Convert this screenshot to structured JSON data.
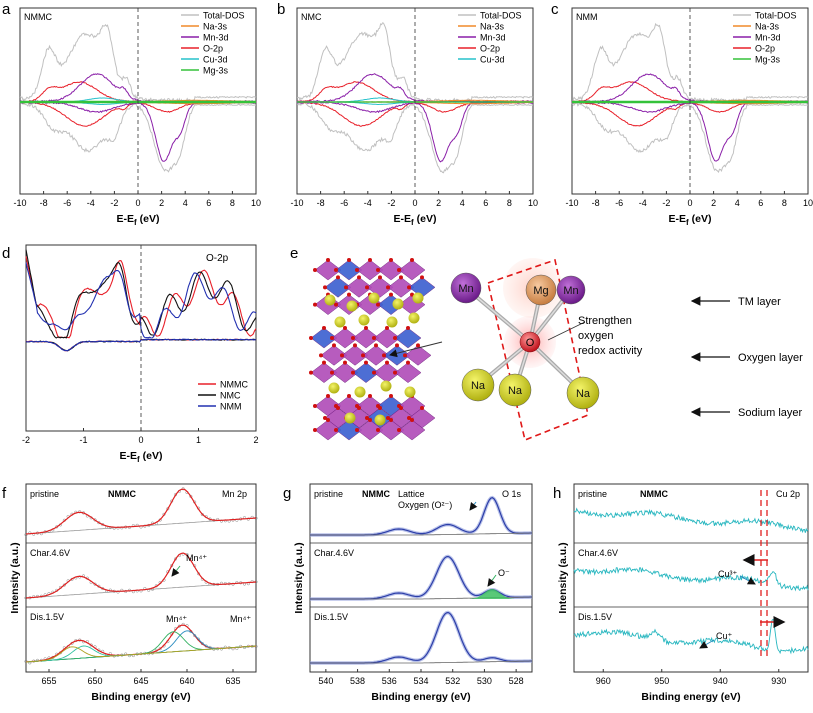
{
  "figure": {
    "panels": {
      "a": {
        "letter": "a",
        "name": "NMMC",
        "legend": [
          "Total-DOS",
          "Na-3s",
          "Mn-3d",
          "O-2p",
          "Cu-3d",
          "Mg-3s"
        ]
      },
      "b": {
        "letter": "b",
        "name": "NMC",
        "legend": [
          "Total-DOS",
          "Na-3s",
          "Mn-3d",
          "O-2p",
          "Cu-3d"
        ]
      },
      "c": {
        "letter": "c",
        "name": "NMM",
        "legend": [
          "Total-DOS",
          "Na-3s",
          "Mn-3d",
          "O-2p",
          "Mg-3s"
        ]
      },
      "d": {
        "letter": "d",
        "label": "O-2p",
        "legend": [
          "NMMC",
          "NMC",
          "NMM"
        ]
      },
      "e": {
        "letter": "e"
      },
      "f": {
        "letter": "f",
        "sample": "NMMC",
        "edge": "Mn 2p",
        "rows": [
          "pristine",
          "Char.4.6V",
          "Dis.1.5V"
        ]
      },
      "g": {
        "letter": "g",
        "sample": "NMMC",
        "edge": "O 1s",
        "rows": [
          "pristine",
          "Char.4.6V",
          "Dis.1.5V"
        ]
      },
      "h": {
        "letter": "h",
        "sample": "NMMC",
        "edge": "Cu 2p",
        "rows": [
          "pristine",
          "Char.4.6V",
          "Dis.1.5V"
        ]
      }
    },
    "axis": {
      "dos_ticks": [
        "-10",
        "-8",
        "-6",
        "-4",
        "-2",
        "0",
        "2",
        "4",
        "6",
        "8",
        "10"
      ],
      "d_ticks": [
        "-2",
        "-1",
        "0",
        "1",
        "2"
      ],
      "energy_label_main": "E-E",
      "energy_label_sub": "f",
      "energy_label_unit": " (eV)",
      "binding_label": "Binding energy (eV)",
      "intensity_label": "Intensity (a.u.)",
      "f_ticks": [
        "655",
        "650",
        "645",
        "640",
        "635"
      ],
      "g_ticks": [
        "540",
        "538",
        "536",
        "534",
        "532",
        "530",
        "528"
      ],
      "h_ticks": [
        "960",
        "950",
        "940",
        "930"
      ]
    },
    "structure": {
      "atoms": [
        "Mn",
        "Mg",
        "Mn",
        "O",
        "Na",
        "Na",
        "Na"
      ],
      "annotation": [
        "Strengthen",
        "oxygen",
        "redox activity"
      ],
      "layers": [
        "TM layer",
        "Oxygen layer",
        "Sodium layer"
      ]
    },
    "xps_notes": {
      "f": {
        "char": "Mn⁴⁺",
        "dis_left": "Mn⁴⁺",
        "dis_right": "Mn⁴⁺"
      },
      "g": {
        "lattice1": "Lattice",
        "lattice2": "Oxygen  (O²⁻)",
        "o_minus": "O⁻"
      },
      "h": {
        "cu3": "Cu³⁺",
        "cu1": "Cu⁺"
      }
    },
    "colors": {
      "total": "#c0c0c0",
      "na": "#f08a2a",
      "mn": "#8a1fa8",
      "o": "#e8202a",
      "cu": "#27c2cc",
      "mg": "#35c23a",
      "nmmc": "#e8202a",
      "nmc": "#111111",
      "nmm": "#2230b0",
      "xps": "#2c3ea8",
      "cyan": "#29b7c0"
    }
  }
}
